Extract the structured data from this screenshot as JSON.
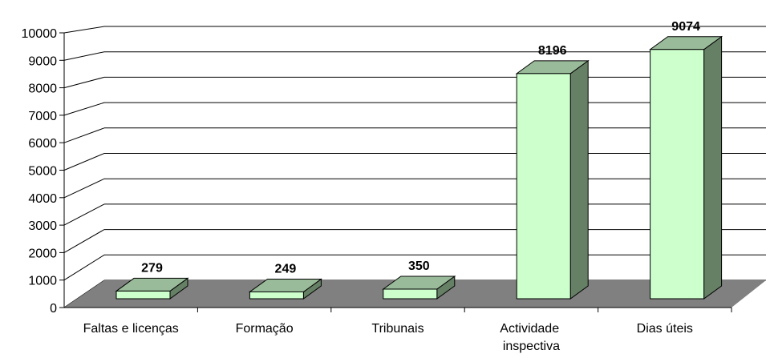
{
  "chart_data": {
    "type": "bar3d",
    "categories": [
      "Faltas e licenças",
      "Formação",
      "Tribunais",
      "Actividade inspectiva",
      "Dias úteis"
    ],
    "values": [
      279,
      249,
      350,
      8196,
      9074
    ],
    "ylim": [
      0,
      10000
    ],
    "yticks": [
      0,
      1000,
      2000,
      3000,
      4000,
      5000,
      6000,
      7000,
      8000,
      9000,
      10000
    ],
    "grid": true,
    "color": "#ccffcc",
    "side_color": "#668066",
    "top_color": "#99bb99",
    "floor_color": "#808080"
  }
}
